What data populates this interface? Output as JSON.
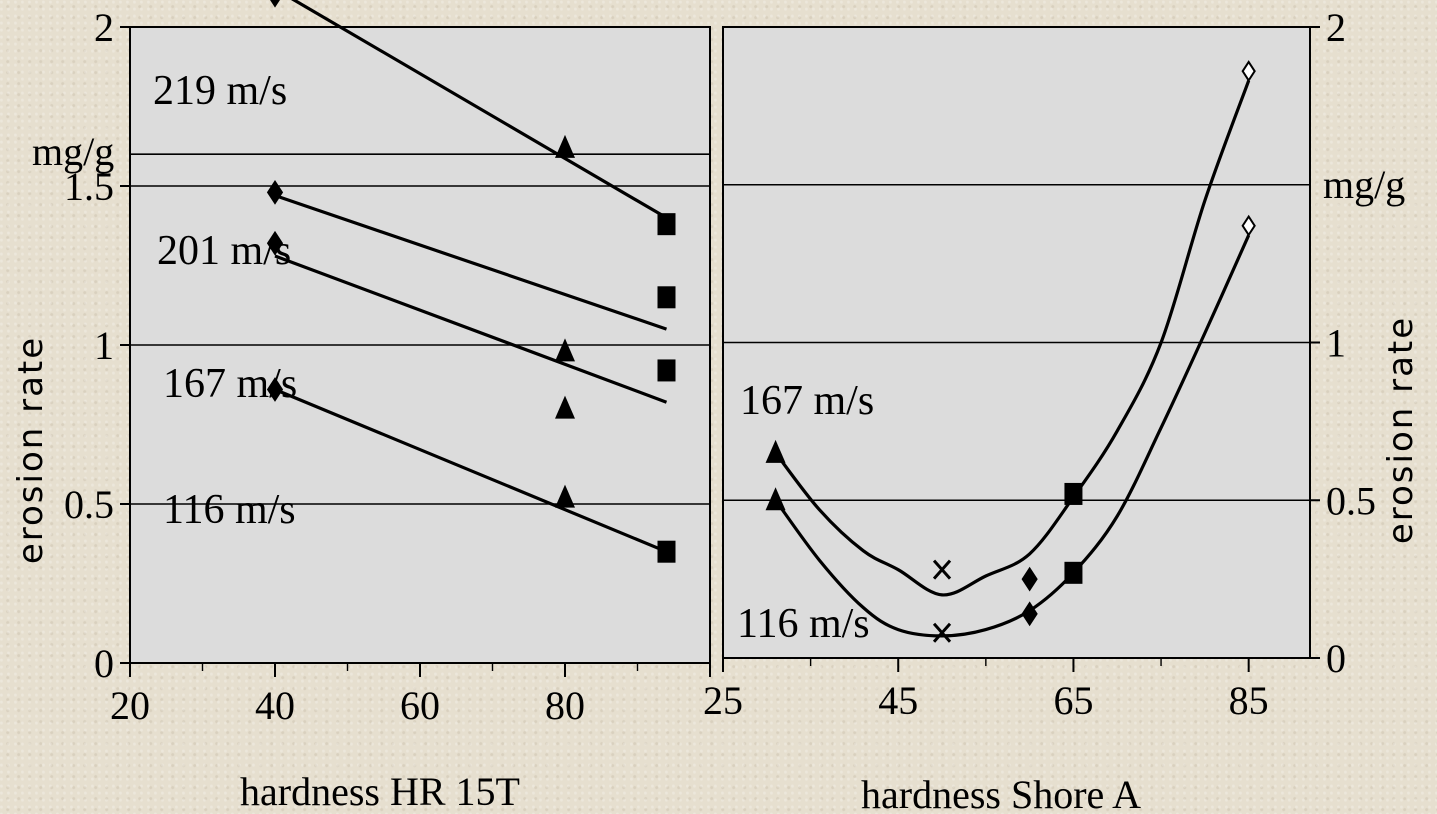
{
  "chart_data": [
    {
      "type": "line",
      "xlabel": "hardness HR 15T",
      "ylabel": "erosion rate",
      "yunit": "mg/g",
      "xlim": [
        20,
        100
      ],
      "ylim": [
        0,
        2
      ],
      "xticks": [
        20,
        40,
        60,
        80
      ],
      "yticks": [
        0,
        0.5,
        1,
        1.5,
        2
      ],
      "ytick_labels": [
        "0",
        "0.5",
        "1",
        "1.5",
        "2"
      ],
      "grid": "horizontal",
      "series": [
        {
          "name": "219 m/s",
          "fit": [
            [
              40,
              2.12
            ],
            [
              94,
              1.4
            ]
          ],
          "points": [
            {
              "x": 40,
              "y": 2.1,
              "marker": "diamond"
            },
            {
              "x": 80,
              "y": 1.62,
              "marker": "triangle"
            },
            {
              "x": 94,
              "y": 1.38,
              "marker": "square"
            }
          ]
        },
        {
          "name": "201 m/s",
          "fit": [
            [
              40,
              1.47
            ],
            [
              94,
              1.05
            ]
          ],
          "points": [
            {
              "x": 40,
              "y": 1.48,
              "marker": "diamond"
            },
            {
              "x": 80,
              "y": 0.98,
              "marker": "triangle"
            },
            {
              "x": 94,
              "y": 1.15,
              "marker": "square"
            }
          ]
        },
        {
          "name": "167 m/s",
          "fit": [
            [
              40,
              1.28
            ],
            [
              94,
              0.82
            ]
          ],
          "points": [
            {
              "x": 40,
              "y": 1.32,
              "marker": "diamond"
            },
            {
              "x": 80,
              "y": 0.8,
              "marker": "triangle"
            },
            {
              "x": 94,
              "y": 0.92,
              "marker": "square"
            }
          ]
        },
        {
          "name": "116 m/s",
          "fit": [
            [
              40,
              0.86
            ],
            [
              94,
              0.35
            ]
          ],
          "points": [
            {
              "x": 40,
              "y": 0.86,
              "marker": "diamond"
            },
            {
              "x": 80,
              "y": 0.52,
              "marker": "triangle"
            },
            {
              "x": 94,
              "y": 0.35,
              "marker": "square"
            }
          ]
        }
      ]
    },
    {
      "type": "line",
      "xlabel": "hardness Shore A",
      "ylabel": "erosion rate",
      "yunit": "mg/g",
      "xlim": [
        25,
        92
      ],
      "ylim": [
        0,
        2
      ],
      "xticks": [
        25,
        45,
        65,
        85
      ],
      "yticks": [
        0,
        0.5,
        1,
        2
      ],
      "ytick_labels": [
        "0",
        "0.5",
        "1",
        "2"
      ],
      "grid": "horizontal",
      "series": [
        {
          "name": "167 m/s",
          "fit": [
            [
              31,
              0.65
            ],
            [
              36,
              0.47
            ],
            [
              41,
              0.34
            ],
            [
              45,
              0.28
            ],
            [
              50,
              0.2
            ],
            [
              55,
              0.26
            ],
            [
              60,
              0.33
            ],
            [
              65,
              0.51
            ],
            [
              70,
              0.72
            ],
            [
              75,
              1.0
            ],
            [
              80,
              1.45
            ],
            [
              85,
              1.83
            ]
          ],
          "points": [
            {
              "x": 31,
              "y": 0.65,
              "marker": "triangle"
            },
            {
              "x": 50,
              "y": 0.28,
              "marker": "x"
            },
            {
              "x": 65,
              "y": 0.52,
              "marker": "square"
            },
            {
              "x": 85,
              "y": 1.86,
              "marker": "diamond-open"
            }
          ]
        },
        {
          "name": "116 m/s",
          "fit": [
            [
              31,
              0.5
            ],
            [
              36,
              0.31
            ],
            [
              41,
              0.16
            ],
            [
              45,
              0.09
            ],
            [
              50,
              0.07
            ],
            [
              55,
              0.09
            ],
            [
              60,
              0.15
            ],
            [
              65,
              0.27
            ],
            [
              70,
              0.45
            ],
            [
              75,
              0.73
            ],
            [
              80,
              1.03
            ],
            [
              85,
              1.34
            ]
          ],
          "points": [
            {
              "x": 31,
              "y": 0.5,
              "marker": "triangle"
            },
            {
              "x": 50,
              "y": 0.08,
              "marker": "x"
            },
            {
              "x": 60,
              "y": 0.25,
              "marker": "diamond"
            },
            {
              "x": 60,
              "y": 0.14,
              "marker": "diamond"
            },
            {
              "x": 65,
              "y": 0.27,
              "marker": "square"
            },
            {
              "x": 85,
              "y": 1.37,
              "marker": "diamond-open"
            }
          ]
        }
      ]
    }
  ]
}
